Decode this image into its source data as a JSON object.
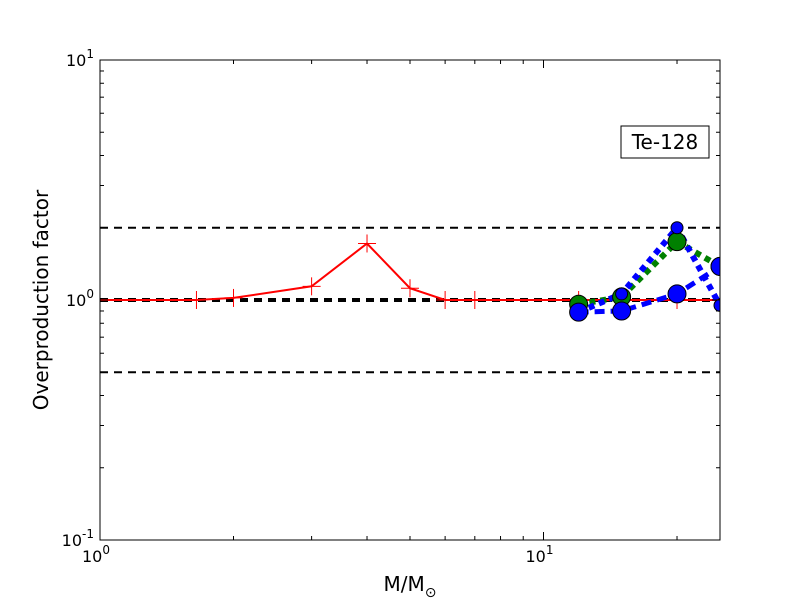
{
  "chart_data": {
    "type": "line",
    "xscale": "log",
    "yscale": "log",
    "xlim": [
      1,
      25
    ],
    "ylim": [
      0.1,
      10
    ],
    "xlabel_main": "M/M",
    "xlabel_sub": "⊙",
    "ylabel": "Overproduction factor",
    "grid": false,
    "x_ticks": [
      {
        "value": 1,
        "base": "10",
        "exp": "0"
      },
      {
        "value": 10,
        "base": "10",
        "exp": "1"
      }
    ],
    "y_ticks": [
      {
        "value": 0.1,
        "base": "10",
        "exp": "-1"
      },
      {
        "value": 1,
        "base": "10",
        "exp": "0"
      },
      {
        "value": 10,
        "base": "10",
        "exp": "1"
      }
    ],
    "annotation": "Te-128",
    "reference_lines": [
      {
        "y": 2.0,
        "style": "dashed",
        "width": 2,
        "color": "#000000"
      },
      {
        "y": 1.0,
        "style": "dashed",
        "width": 4,
        "color": "#000000"
      },
      {
        "y": 0.5,
        "style": "dashed",
        "width": 2,
        "color": "#000000"
      }
    ],
    "series": [
      {
        "color": "#ff0000",
        "line_style": "solid",
        "marker": "plus",
        "x": [
          1.0,
          1.65,
          2.0,
          3.0,
          4.0,
          5.0,
          6.0,
          7.0,
          12.0,
          15.0,
          20.0,
          25.0
        ],
        "y": [
          1.0,
          1.0,
          1.02,
          1.14,
          1.72,
          1.12,
          1.0,
          1.0,
          1.0,
          1.0,
          1.0,
          1.0
        ]
      },
      {
        "color": "#008000",
        "line_style": "dotted",
        "marker": "circle",
        "x": [
          12.0,
          15.0,
          20.0,
          25.0
        ],
        "y": [
          0.96,
          1.03,
          1.75,
          1.38
        ]
      },
      {
        "color": "#0000ff",
        "line_style": "dotted",
        "marker": "circle",
        "x": [
          12.0,
          15.0,
          20.0,
          25.0
        ],
        "y": [
          0.89,
          1.06,
          2.0,
          0.95
        ]
      },
      {
        "color": "#0000ff",
        "line_style": "dashed",
        "marker": "circle",
        "x": [
          12.0,
          15.0,
          20.0,
          25.0
        ],
        "y": [
          0.89,
          0.9,
          1.06,
          1.38
        ]
      }
    ]
  }
}
